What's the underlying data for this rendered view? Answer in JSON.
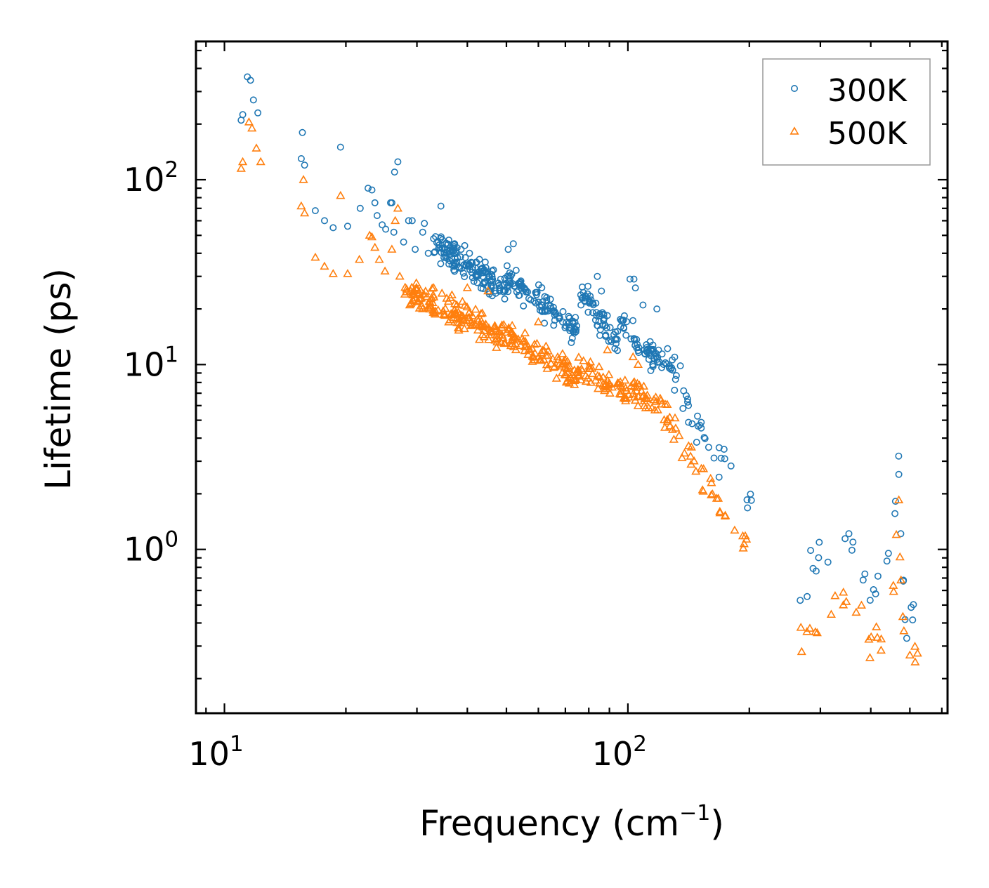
{
  "chart_data": {
    "type": "scatter",
    "title": "",
    "xlabel": "Frequency (cm",
    "xlabel_sup": "−1",
    "xlabel_close": ")",
    "ylabel": "Lifetime (ps)",
    "xscale": "log",
    "yscale": "log",
    "xlim": [
      8.5,
      620
    ],
    "ylim": [
      0.13,
      560
    ],
    "x_ticks": [
      {
        "value": 10,
        "base": "10",
        "exp": "1"
      },
      {
        "value": 100,
        "base": "10",
        "exp": "2"
      }
    ],
    "y_ticks": [
      {
        "value": 1,
        "base": "10",
        "exp": "0"
      },
      {
        "value": 10,
        "base": "10",
        "exp": "1"
      },
      {
        "value": 100,
        "base": "10",
        "exp": "2"
      }
    ],
    "grid": false,
    "legend_position": "top-right",
    "colors": {
      "s300": "#1f77b4",
      "s500": "#ff7f0e",
      "axis": "#000000",
      "legend_border": "#999999"
    },
    "series": [
      {
        "name": "300K",
        "marker": "circle",
        "color": "#1f77b4",
        "points": [
          [
            11.0,
            210
          ],
          [
            11.1,
            225
          ],
          [
            11.4,
            360
          ],
          [
            11.6,
            345
          ],
          [
            11.8,
            270
          ],
          [
            12.1,
            230
          ],
          [
            15.6,
            180
          ],
          [
            15.5,
            130
          ],
          [
            15.8,
            120
          ],
          [
            16.8,
            68
          ],
          [
            17.7,
            60
          ],
          [
            18.6,
            55
          ],
          [
            19.4,
            150
          ],
          [
            20.2,
            56
          ],
          [
            21.7,
            70
          ],
          [
            22.7,
            90
          ],
          [
            23.2,
            88
          ],
          [
            23.6,
            75
          ],
          [
            23.9,
            64
          ],
          [
            24.6,
            57
          ],
          [
            25.1,
            54
          ],
          [
            25.8,
            75
          ],
          [
            26.0,
            75
          ],
          [
            26.4,
            110
          ],
          [
            26.9,
            125
          ],
          [
            26.3,
            52
          ],
          [
            27.8,
            46
          ],
          [
            28.6,
            60
          ],
          [
            29.2,
            60
          ],
          [
            29.7,
            42
          ],
          [
            31.0,
            52
          ],
          [
            31.3,
            58
          ],
          [
            32.0,
            40
          ],
          [
            33.0,
            48
          ],
          [
            34.4,
            72
          ],
          [
            35.0,
            38
          ],
          [
            36.0,
            35
          ],
          [
            37.2,
            34
          ],
          [
            38.6,
            42
          ],
          [
            39.4,
            44
          ],
          [
            40.5,
            40
          ],
          [
            52.0,
            45
          ],
          [
            50.5,
            42
          ],
          [
            60.1,
            27
          ],
          [
            84.0,
            30
          ],
          [
            86.0,
            25
          ],
          [
            101.2,
            29
          ],
          [
            103.5,
            29
          ],
          [
            104.4,
            26
          ],
          [
            109.0,
            21
          ],
          [
            118.0,
            20
          ]
        ],
        "bands": [
          [
            33,
            50,
            45,
            25,
            14,
            0.05
          ],
          [
            50,
            75,
            30,
            15,
            10,
            0.05
          ],
          [
            75,
            95,
            26,
            13,
            10,
            0.05
          ],
          [
            95,
            120,
            18,
            10,
            9,
            0.05
          ],
          [
            120,
            135,
            11,
            8.5,
            5.8,
            0.06
          ],
          [
            135,
            150,
            7.8,
            4.4,
            4.0,
            0.06
          ],
          [
            150,
            165,
            4.6,
            3.3,
            2.9,
            0.06
          ],
          [
            165,
            185,
            3.2,
            2.5,
            2.1,
            0.06
          ],
          [
            185,
            205,
            2.3,
            1.75,
            1.6,
            0.05
          ],
          [
            256,
            290,
            0.55,
            0.8,
            0.52,
            0.07
          ],
          [
            290,
            340,
            0.8,
            1.25,
            0.75,
            0.07
          ],
          [
            340,
            370,
            1.25,
            0.95,
            0.9,
            0.07
          ],
          [
            370,
            410,
            0.95,
            0.6,
            0.7,
            0.07
          ],
          [
            410,
            455,
            0.6,
            0.95,
            0.62,
            0.07
          ],
          [
            455,
            470,
            1.3,
            3.0,
            1.2,
            0.06
          ],
          [
            470,
            487,
            2.0,
            0.4,
            1.1,
            0.07
          ],
          [
            487,
            525,
            0.35,
            0.58,
            0.4,
            0.08
          ]
        ]
      },
      {
        "name": "500K",
        "marker": "triangle",
        "color": "#ff7f0e",
        "points": [
          [
            11.0,
            115
          ],
          [
            11.1,
            125
          ],
          [
            11.5,
            205
          ],
          [
            11.7,
            190
          ],
          [
            12.0,
            148
          ],
          [
            12.3,
            125
          ],
          [
            15.5,
            72
          ],
          [
            15.8,
            66
          ],
          [
            15.7,
            100
          ],
          [
            16.8,
            38
          ],
          [
            17.7,
            34
          ],
          [
            18.6,
            31
          ],
          [
            19.4,
            82
          ],
          [
            20.2,
            31
          ],
          [
            21.6,
            37
          ],
          [
            22.9,
            50
          ],
          [
            23.2,
            49
          ],
          [
            23.6,
            43
          ],
          [
            24.2,
            37
          ],
          [
            25.0,
            32
          ],
          [
            26.0,
            42
          ],
          [
            26.5,
            60
          ],
          [
            26.9,
            70
          ],
          [
            27.2,
            30
          ],
          [
            28.0,
            24
          ],
          [
            28.8,
            21
          ],
          [
            29.5,
            25
          ],
          [
            31.0,
            20
          ],
          [
            32.2,
            22
          ],
          [
            33.0,
            26
          ],
          [
            40.0,
            26
          ],
          [
            45.0,
            25
          ],
          [
            60.0,
            17
          ],
          [
            89.0,
            12
          ],
          [
            103.0,
            11
          ],
          [
            106.0,
            10
          ]
        ],
        "bands": [
          [
            28,
            50,
            25,
            14,
            10,
            0.05
          ],
          [
            50,
            75,
            14,
            8.5,
            9,
            0.05
          ],
          [
            75,
            100,
            9.5,
            6.8,
            8,
            0.05
          ],
          [
            100,
            122,
            7.5,
            5.8,
            7,
            0.05
          ],
          [
            122,
            140,
            5.8,
            3.3,
            4.5,
            0.06
          ],
          [
            140,
            165,
            3.4,
            1.85,
            3.5,
            0.06
          ],
          [
            165,
            185,
            1.9,
            1.4,
            2.6,
            0.06
          ],
          [
            185,
            205,
            1.25,
            1.0,
            1.8,
            0.05
          ],
          [
            256,
            290,
            0.26,
            0.38,
            0.4,
            0.07
          ],
          [
            290,
            340,
            0.38,
            0.52,
            0.5,
            0.07
          ],
          [
            340,
            370,
            0.52,
            0.42,
            0.45,
            0.07
          ],
          [
            370,
            410,
            0.42,
            0.3,
            0.4,
            0.07
          ],
          [
            410,
            455,
            0.3,
            0.4,
            0.35,
            0.07
          ],
          [
            455,
            470,
            0.55,
            1.9,
            0.6,
            0.06
          ],
          [
            470,
            487,
            1.2,
            0.25,
            0.6,
            0.07
          ],
          [
            487,
            525,
            0.2,
            0.3,
            0.35,
            0.08
          ]
        ]
      }
    ]
  }
}
